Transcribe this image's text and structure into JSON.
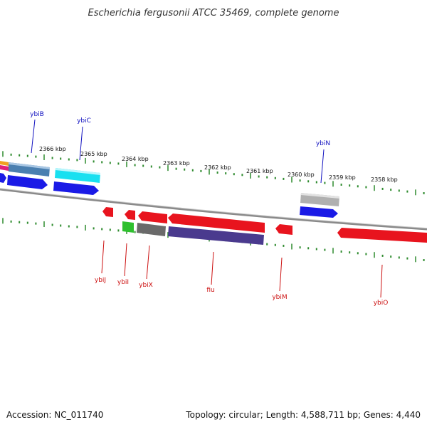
{
  "title": "Escherichia fergusonii ATCC 35469, complete genome",
  "footer": {
    "accession": "Accession: NC_011740",
    "summary": "Topology: circular; Length: 4,588,711 bp; Genes: 4,440"
  },
  "kbp_labels": [
    "2366 kbp",
    "2365 kbp",
    "2364 kbp",
    "2363 kbp",
    "2362 kbp",
    "2361 kbp",
    "2360 kbp",
    "2359 kbp",
    "2358 kbp"
  ],
  "colors": {
    "backbone": "#8a8a8a",
    "ticks": "#2e8b2e",
    "forward_label": "#1010c0",
    "reverse_label": "#cc1010"
  },
  "forward_genes": [
    {
      "name": "ybiB"
    },
    {
      "name": "ybiC"
    },
    {
      "name": "ybiN"
    }
  ],
  "reverse_genes": [
    {
      "name": "ybiJ"
    },
    {
      "name": "ybiI"
    },
    {
      "name": "ybiX"
    },
    {
      "name": "fiu"
    },
    {
      "name": "ybiM"
    },
    {
      "name": "ybiO"
    }
  ]
}
